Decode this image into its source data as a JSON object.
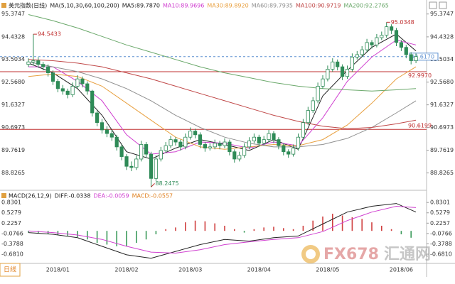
{
  "chart_data": [
    {
      "type": "candlestick",
      "title": "美元指数(日线)",
      "indicator": "MA(5,10,30,60,100,200)",
      "categories": [
        null,
        null,
        null,
        null,
        null,
        null,
        "2018/01",
        null,
        null,
        null,
        null,
        null,
        null,
        null,
        null,
        null,
        null,
        null,
        null,
        null,
        "2018/02",
        null,
        null,
        null,
        null,
        null,
        null,
        null,
        null,
        null,
        null,
        null,
        null,
        "2018/03",
        null,
        null,
        null,
        null,
        null,
        null,
        null,
        null,
        null,
        null,
        null,
        null,
        null,
        "2018/04",
        null,
        null,
        null,
        null,
        null,
        null,
        null,
        null,
        null,
        null,
        null,
        null,
        null,
        "2018/05",
        null,
        null,
        null,
        null,
        null,
        null,
        null,
        null,
        null,
        null,
        null,
        null,
        null,
        null,
        "2018/06",
        null,
        null,
        null
      ],
      "open": [
        93.3,
        93.4,
        93.45,
        93.3,
        93.2,
        92.95,
        92.6,
        92.3,
        92.2,
        92.05,
        92.4,
        92.7,
        92.5,
        92.2,
        91.3,
        90.9,
        90.6,
        90.45,
        90.3,
        89.9,
        89.5,
        89.1,
        89.05,
        89.4,
        90.0,
        89.6,
        88.6,
        89.4,
        89.75,
        89.95,
        90.2,
        90.1,
        89.9,
        90.3,
        90.55,
        90.4,
        90.0,
        89.85,
        89.9,
        90.05,
        89.95,
        90.1,
        89.7,
        89.4,
        89.55,
        89.9,
        90.15,
        90.3,
        90.05,
        90.2,
        90.45,
        90.2,
        89.95,
        89.7,
        89.6,
        89.85,
        90.3,
        90.9,
        91.4,
        91.8,
        92.4,
        92.7,
        93.1,
        93.4,
        93.2,
        92.8,
        93.1,
        93.6,
        93.7,
        93.9,
        94.2,
        94.1,
        94.4,
        94.5,
        94.85,
        94.7,
        94.2,
        94.0,
        93.7,
        93.45
      ],
      "high": [
        93.55,
        94.5433,
        93.6,
        93.4,
        93.3,
        93.05,
        92.7,
        92.45,
        92.3,
        92.55,
        92.85,
        92.8,
        92.6,
        92.25,
        91.4,
        91.05,
        90.75,
        90.6,
        90.4,
        90.0,
        89.6,
        89.3,
        89.55,
        90.15,
        90.1,
        89.7,
        89.55,
        89.9,
        90.1,
        90.35,
        90.3,
        90.2,
        90.45,
        90.7,
        90.65,
        90.5,
        90.1,
        90.05,
        90.2,
        90.15,
        90.25,
        90.2,
        89.8,
        89.7,
        90.05,
        90.3,
        90.45,
        90.4,
        90.35,
        90.6,
        90.55,
        90.3,
        90.05,
        89.8,
        90.0,
        90.45,
        91.05,
        91.55,
        91.95,
        92.55,
        92.85,
        93.25,
        93.55,
        93.5,
        93.3,
        93.25,
        93.75,
        93.85,
        94.05,
        94.35,
        94.3,
        94.55,
        94.65,
        95.0348,
        94.95,
        94.8,
        94.3,
        94.1,
        93.8,
        93.75
      ],
      "low": [
        93.2,
        93.25,
        93.15,
        93.05,
        92.8,
        92.45,
        92.15,
        92.05,
        91.9,
        91.95,
        92.3,
        92.35,
        92.05,
        91.15,
        90.75,
        90.45,
        90.3,
        90.15,
        89.75,
        89.35,
        88.95,
        88.9,
        88.95,
        89.3,
        89.45,
        88.2475,
        88.5,
        89.3,
        89.65,
        89.85,
        89.95,
        89.75,
        89.8,
        90.2,
        90.25,
        89.85,
        89.7,
        89.75,
        89.8,
        89.8,
        89.85,
        89.55,
        89.25,
        89.3,
        89.45,
        89.8,
        90.05,
        89.9,
        89.95,
        90.1,
        90.05,
        89.8,
        89.55,
        89.45,
        89.5,
        89.75,
        90.2,
        90.8,
        91.3,
        91.7,
        92.3,
        92.6,
        93.0,
        93.05,
        92.65,
        92.7,
        93.0,
        93.5,
        93.6,
        93.8,
        93.95,
        94.0,
        94.3,
        94.4,
        94.55,
        94.05,
        93.85,
        93.55,
        93.3,
        93.35
      ],
      "close": [
        93.4,
        93.45,
        93.3,
        93.2,
        92.95,
        92.6,
        92.3,
        92.2,
        92.05,
        92.4,
        92.7,
        92.5,
        92.2,
        91.3,
        90.9,
        90.6,
        90.45,
        90.3,
        89.9,
        89.5,
        89.1,
        89.05,
        89.4,
        90.0,
        89.6,
        88.6,
        89.4,
        89.75,
        89.95,
        90.2,
        90.1,
        89.9,
        90.3,
        90.55,
        90.4,
        90.0,
        89.85,
        89.9,
        90.05,
        89.95,
        90.1,
        89.7,
        89.4,
        89.55,
        89.9,
        90.15,
        90.3,
        90.05,
        90.2,
        90.45,
        90.2,
        89.95,
        89.7,
        89.6,
        89.85,
        90.3,
        90.9,
        91.4,
        91.8,
        92.4,
        92.7,
        93.1,
        93.4,
        93.2,
        92.8,
        93.1,
        93.6,
        93.7,
        93.9,
        94.2,
        94.1,
        94.4,
        94.5,
        94.85,
        94.7,
        94.2,
        94.0,
        93.7,
        93.45,
        93.62
      ],
      "up_color": "#2e8b57",
      "down_color": "#2e8b57",
      "ylim": [
        88.2,
        95.6
      ],
      "yticks": [
        88.8265,
        89.7619,
        90.6973,
        91.6327,
        {
          "value": 92.568,
          "label": "92.5680"
        },
        93.5034,
        94.4328,
        95.3747
      ],
      "series": [
        {
          "name": "MA5:89.7870",
          "color": "#222222",
          "x": [
            0,
            5,
            10,
            15,
            20,
            25,
            30,
            35,
            40,
            45,
            50,
            55,
            60,
            65,
            70,
            75,
            79
          ],
          "values": [
            93.35,
            92.95,
            92.3,
            91.2,
            89.7,
            89.4,
            89.85,
            90.2,
            90.0,
            89.75,
            90.2,
            89.8,
            92.0,
            93.05,
            94.0,
            94.55,
            93.85
          ]
        },
        {
          "name": "MA10:89.9696",
          "color": "#d040d0",
          "x": [
            0,
            5,
            10,
            15,
            20,
            25,
            30,
            35,
            40,
            45,
            50,
            55,
            60,
            65,
            70,
            75,
            79
          ],
          "values": [
            93.2,
            93.2,
            92.6,
            91.8,
            90.4,
            89.6,
            89.7,
            90.1,
            90.05,
            89.85,
            90.1,
            89.95,
            91.1,
            92.6,
            93.6,
            94.3,
            94.1
          ]
        },
        {
          "name": "MA30:89.8920",
          "color": "#e8a040",
          "x": [
            0,
            5,
            10,
            15,
            20,
            25,
            30,
            35,
            40,
            45,
            50,
            55,
            60,
            65,
            70,
            75,
            79
          ],
          "values": [
            92.8,
            92.9,
            92.8,
            92.4,
            91.7,
            91.0,
            90.3,
            89.9,
            89.8,
            89.9,
            90.0,
            89.95,
            90.2,
            90.8,
            91.7,
            92.7,
            93.2
          ]
        },
        {
          "name": "MA60:89.7935",
          "color": "#909090",
          "x": [
            0,
            5,
            10,
            15,
            20,
            25,
            30,
            35,
            40,
            45,
            50,
            55,
            60,
            65,
            70,
            75,
            79
          ],
          "values": [
            93.4,
            93.2,
            93.0,
            92.7,
            92.3,
            91.8,
            91.2,
            90.7,
            90.3,
            90.05,
            89.9,
            89.9,
            90.0,
            90.25,
            90.7,
            91.3,
            91.8
          ]
        },
        {
          "name": "MA100:90.9719",
          "color": "#c04848",
          "x": [
            0,
            5,
            10,
            15,
            20,
            25,
            30,
            35,
            40,
            45,
            50,
            55,
            60,
            65,
            70,
            75,
            79
          ],
          "values": [
            93.5,
            93.45,
            93.35,
            93.2,
            92.95,
            92.7,
            92.4,
            92.1,
            91.8,
            91.5,
            91.2,
            90.95,
            90.75,
            90.65,
            90.7,
            90.85,
            91.0
          ]
        },
        {
          "name": "MA200:92.2765",
          "color": "#6aa86a",
          "x": [
            0,
            5,
            10,
            15,
            20,
            25,
            30,
            35,
            40,
            45,
            50,
            55,
            60,
            65,
            70,
            75,
            79
          ],
          "values": [
            95.35,
            95.1,
            94.8,
            94.45,
            94.1,
            93.8,
            93.5,
            93.2,
            92.95,
            92.75,
            92.55,
            92.4,
            92.3,
            92.25,
            92.2,
            92.25,
            92.3
          ]
        }
      ],
      "annotations": [
        94.5433,
        95.0348,
        88.2475
      ],
      "levels": [
        {
          "value": 93.617,
          "label": "93.6170",
          "color": "#5b8fd0",
          "style": "dashed"
        },
        {
          "value": 92.997,
          "label": "92.9970",
          "color": "#c03030",
          "style": "solid"
        },
        {
          "value": 90.6199,
          "color": "#c03030",
          "style": "solid"
        }
      ]
    },
    {
      "type": "macd",
      "title": "MACD(26,12,9)",
      "ylim": [
        -0.93,
        1.0
      ],
      "yticks": [
        {
          "value": -0.681,
          "label": "-0.6810"
        },
        -0.3788,
        -0.0766,
        0.2257,
        0.5279,
        0.8301
      ],
      "series": [
        {
          "name": "DIFF:-0.0338",
          "color": "#222222",
          "x": [
            0,
            5,
            10,
            15,
            20,
            25,
            30,
            35,
            40,
            45,
            50,
            55,
            60,
            65,
            70,
            75,
            79
          ],
          "values": [
            -0.05,
            -0.1,
            -0.2,
            -0.45,
            -0.7,
            -0.8,
            -0.6,
            -0.4,
            -0.25,
            -0.3,
            -0.2,
            -0.15,
            0.2,
            0.55,
            0.72,
            0.8,
            0.55
          ]
        },
        {
          "name": "DEA:-0.0059",
          "color": "#d040d0",
          "x": [
            0,
            5,
            10,
            15,
            20,
            25,
            30,
            35,
            40,
            45,
            50,
            55,
            60,
            65,
            70,
            75,
            79
          ],
          "values": [
            0.0,
            -0.05,
            -0.12,
            -0.25,
            -0.45,
            -0.62,
            -0.65,
            -0.55,
            -0.4,
            -0.32,
            -0.25,
            -0.2,
            -0.02,
            0.3,
            0.55,
            0.72,
            0.68
          ]
        }
      ],
      "histogram": {
        "name": "MACD:-0.0557",
        "color": "#e08020",
        "up_color": "#d04040",
        "down_color": "#3a9a5a",
        "x": [
          0,
          2,
          4,
          6,
          8,
          10,
          12,
          14,
          16,
          18,
          20,
          22,
          24,
          26,
          28,
          30,
          32,
          34,
          36,
          38,
          40,
          42,
          44,
          46,
          48,
          50,
          52,
          54,
          56,
          58,
          60,
          62,
          64,
          66,
          68,
          70,
          72,
          74,
          76,
          78
        ],
        "values": [
          -0.05,
          -0.08,
          -0.1,
          -0.12,
          -0.14,
          -0.18,
          -0.25,
          -0.35,
          -0.4,
          -0.45,
          -0.45,
          -0.35,
          -0.25,
          -0.1,
          0.05,
          0.1,
          0.25,
          0.3,
          0.28,
          0.22,
          0.15,
          0.05,
          -0.05,
          0.05,
          0.1,
          0.12,
          0.08,
          0.05,
          0.15,
          0.3,
          0.42,
          0.5,
          0.45,
          0.4,
          0.35,
          0.25,
          0.15,
          0.05,
          -0.1,
          -0.2
        ]
      }
    }
  ],
  "period_button": "日线",
  "watermark": {
    "brand": "FX678",
    "name": "汇通网"
  }
}
